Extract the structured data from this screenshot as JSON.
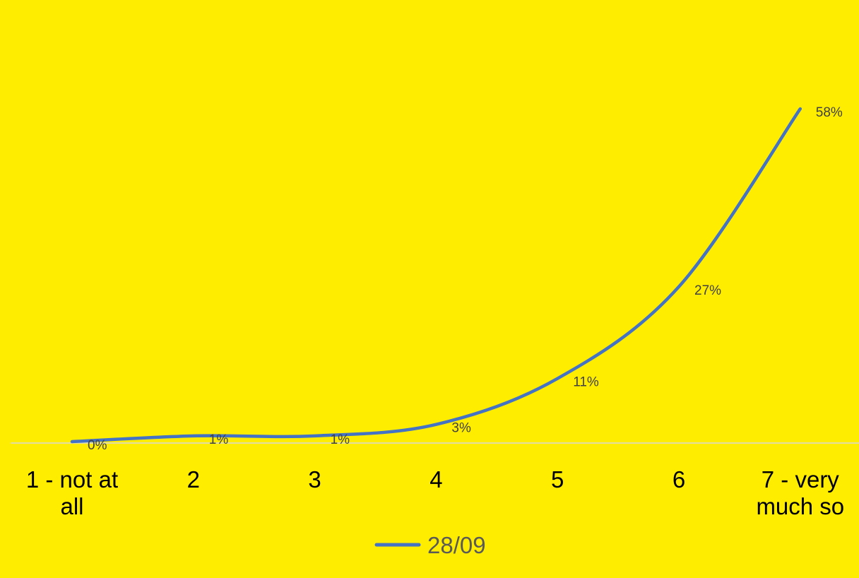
{
  "chart_data": {
    "type": "line",
    "categories": [
      "1 - not at all",
      "2",
      "3",
      "4",
      "5",
      "6",
      "7 - very much so"
    ],
    "category_lines": [
      [
        "1 - not at",
        "all"
      ],
      [
        "2"
      ],
      [
        "3"
      ],
      [
        "4"
      ],
      [
        "5"
      ],
      [
        "6"
      ],
      [
        "7 - very",
        "much so"
      ]
    ],
    "series": [
      {
        "name": "28/09",
        "values": [
          0,
          1,
          1,
          3,
          11,
          27,
          58
        ],
        "data_labels": [
          "0%",
          "1%",
          "1%",
          "3%",
          "11%",
          "27%",
          "58%"
        ],
        "color": "#4472C4"
      }
    ],
    "ylim": [
      0,
      100
    ],
    "grid": false,
    "legend_position": "bottom",
    "smooth": true
  },
  "colors": {
    "background": "#FFED00",
    "axis": "#D9D9D9",
    "line": "#4472C4"
  }
}
